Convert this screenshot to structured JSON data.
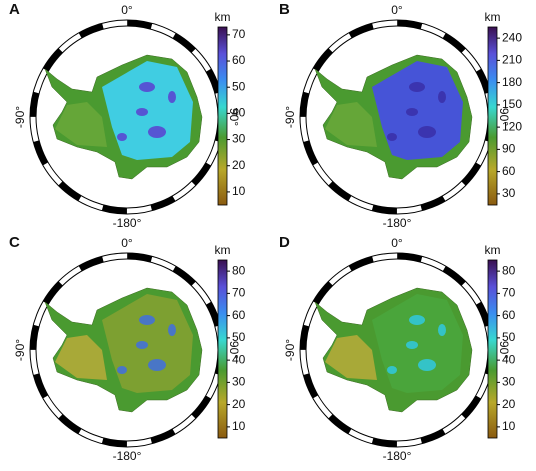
{
  "panels": [
    {
      "label": "A",
      "unit": "km",
      "ticks": [
        10,
        20,
        30,
        40,
        50,
        60,
        70
      ],
      "range": [
        5,
        73
      ],
      "fill": "#3fd0ec",
      "spots": "#5a3fd0",
      "longitudes": {
        "top": "0°",
        "left": "-90°",
        "right": "90°",
        "bottom": "-180°"
      }
    },
    {
      "label": "B",
      "unit": "km",
      "ticks": [
        30,
        60,
        90,
        120,
        150,
        180,
        210,
        240
      ],
      "range": [
        15,
        255
      ],
      "fill": "#4650e0",
      "spots": "#3a2fa8",
      "longitudes": {
        "top": "0°",
        "left": "-90°",
        "right": "90°",
        "bottom": "-180°"
      }
    },
    {
      "label": "C",
      "unit": "km",
      "ticks": [
        10,
        20,
        30,
        40,
        50,
        60,
        70,
        80
      ],
      "range": [
        5,
        85
      ],
      "fill": "#7fa032",
      "spots": "#3f6fe0",
      "longitudes": {
        "top": "0°",
        "left": "-90°",
        "right": "90°",
        "bottom": "-180°"
      }
    },
    {
      "label": "D",
      "unit": "km",
      "ticks": [
        10,
        20,
        30,
        40,
        50,
        60,
        70,
        80
      ],
      "range": [
        5,
        85
      ],
      "fill": "#4aa53c",
      "spots": "#30c8e0",
      "longitudes": {
        "top": "0°",
        "left": "-90°",
        "right": "90°",
        "bottom": "-180°"
      }
    }
  ]
}
